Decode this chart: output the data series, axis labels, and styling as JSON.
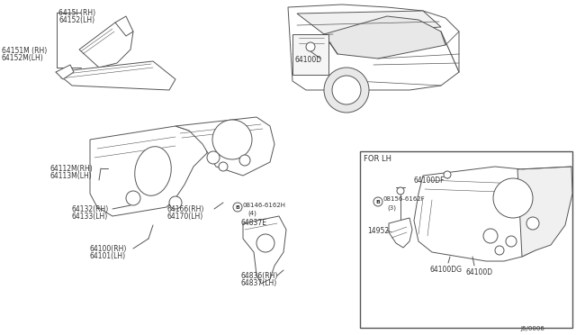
{
  "bg_color": "#ffffff",
  "line_color": "#555555",
  "text_color": "#333333",
  "lw": 0.7,
  "fs": 5.8,
  "labels": {
    "top1": "6415l (RH)\n64152(LH)",
    "top2": "64151M (RH)\n64152M(LH)",
    "ml1": "64112M(RH)\n64113M(LH)",
    "ml2": "64132(RH)\n64133(LH)",
    "mc": "64166(RH)\n64170(LH)",
    "bc_l": "64100(RH)\n64101(LH)",
    "bc_r": "64836(RH)\n64837(LH)",
    "bolt1": "08146-6162H\n(4)",
    "part_e": "64837E",
    "car_lbl": "64100D",
    "for_lh": "FOR LH",
    "bolt2": "08156-6162F\n(3)",
    "df": "64100DF",
    "p14952": "14952",
    "dg": "64100DG",
    "pd": "64100D",
    "ref": "J6/0006"
  }
}
